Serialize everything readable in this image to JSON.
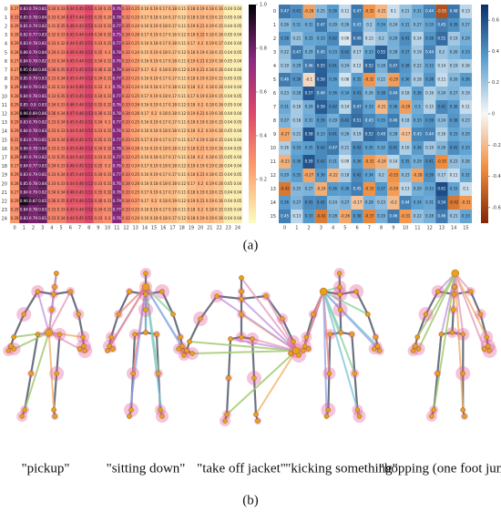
{
  "figure": {
    "panel_a": {
      "label": "(a)",
      "left_heatmap": {
        "ticks": [
          0,
          1,
          2,
          3,
          4,
          5,
          6,
          7,
          8,
          9,
          10,
          11,
          12,
          13,
          14,
          15,
          16,
          17,
          18,
          19,
          20,
          21,
          22,
          23,
          24
        ],
        "colorbar_ticks": [
          0.2,
          0.4,
          0.6,
          0.8,
          {
            "value": 1,
            "label": "1.0"
          }
        ],
        "zlim": [
          0,
          1
        ],
        "values": [
          [
            0.27,
            0.83,
            0.79,
            0.81,
            0.34,
            0.33,
            0.44,
            0.45,
            0.51,
            0.34,
            0.31,
            0.76,
            0.33,
            0.25,
            0.16,
            0.19,
            0.17,
            0.18,
            0.11,
            0.18,
            0.19,
            0.18,
            0.16,
            0.04,
            0.04
          ],
          [
            0.33,
            0.85,
            0.78,
            0.84,
            0.33,
            0.34,
            0.47,
            0.44,
            0.51,
            0.35,
            0.29,
            0.78,
            0.32,
            0.25,
            0.17,
            0.18,
            0.16,
            0.17,
            0.12,
            0.18,
            0.19,
            0.19,
            0.15,
            0.05,
            0.04
          ],
          [
            0.29,
            0.81,
            0.79,
            0.82,
            0.31,
            0.35,
            0.46,
            0.43,
            0.52,
            0.33,
            0.31,
            0.77,
            0.35,
            0.24,
            0.16,
            0.19,
            0.18,
            0.17,
            0.11,
            0.19,
            0.21,
            0.19,
            0.15,
            0.04,
            0.05
          ],
          [
            0.28,
            0.82,
            0.77,
            0.83,
            0.32,
            0.33,
            0.45,
            0.44,
            0.49,
            0.34,
            0.32,
            0.75,
            0.34,
            0.26,
            0.17,
            0.19,
            0.17,
            0.16,
            0.12,
            0.18,
            0.22,
            0.18,
            0.16,
            0.05,
            0.04
          ],
          [
            0.29,
            0.83,
            0.78,
            0.81,
            0.33,
            0.32,
            0.44,
            0.45,
            0.51,
            0.33,
            0.31,
            0.77,
            0.33,
            0.25,
            0.16,
            0.18,
            0.17,
            0.18,
            0.11,
            0.17,
            0.2,
            0.19,
            0.17,
            0.04,
            0.04
          ],
          [
            0.28,
            0.86,
            0.79,
            0.84,
            0.34,
            0.33,
            0.46,
            0.46,
            0.52,
            0.35,
            0.3,
            0.78,
            0.32,
            0.24,
            0.15,
            0.19,
            0.18,
            0.17,
            0.12,
            0.18,
            0.19,
            0.18,
            0.15,
            0.04,
            0.05
          ],
          [
            0.27,
            0.84,
            0.78,
            0.82,
            0.33,
            0.34,
            0.45,
            0.44,
            0.51,
            0.34,
            0.31,
            0.76,
            0.33,
            0.25,
            0.16,
            0.19,
            0.17,
            0.18,
            0.11,
            0.19,
            0.21,
            0.19,
            0.16,
            0.05,
            0.04
          ],
          [
            0.27,
            0.95,
            0.88,
            0.86,
            0.36,
            0.35,
            0.47,
            0.45,
            0.53,
            0.36,
            0.32,
            0.79,
            0.34,
            0.27,
            0.17,
            0.2,
            0.18,
            0.19,
            0.12,
            0.19,
            0.21,
            0.18,
            0.16,
            0.04,
            0.04
          ],
          [
            0.29,
            0.85,
            0.79,
            0.83,
            0.33,
            0.34,
            0.45,
            0.44,
            0.52,
            0.34,
            0.31,
            0.77,
            0.33,
            0.25,
            0.16,
            0.19,
            0.17,
            0.17,
            0.11,
            0.18,
            0.19,
            0.19,
            0.15,
            0.05,
            0.05
          ],
          [
            0.29,
            0.84,
            0.79,
            0.82,
            0.32,
            0.33,
            0.44,
            0.46,
            0.51,
            0.33,
            0.3,
            0.76,
            0.33,
            0.24,
            0.16,
            0.18,
            0.17,
            0.18,
            0.12,
            0.18,
            0.2,
            0.18,
            0.16,
            0.04,
            0.04
          ],
          [
            0.28,
            0.84,
            0.78,
            0.81,
            0.33,
            0.35,
            0.45,
            0.45,
            0.51,
            0.34,
            0.31,
            0.77,
            0.32,
            0.25,
            0.17,
            0.19,
            0.18,
            0.17,
            0.11,
            0.17,
            0.19,
            0.19,
            0.15,
            0.04,
            0.05
          ],
          [
            0.29,
            0.85,
            0.8,
            0.83,
            0.34,
            0.33,
            0.46,
            0.44,
            0.52,
            0.35,
            0.32,
            0.76,
            0.33,
            0.26,
            0.16,
            0.19,
            0.17,
            0.18,
            0.12,
            0.18,
            0.2,
            0.18,
            0.16,
            0.05,
            0.04
          ],
          [
            0.29,
            0.96,
            0.89,
            0.86,
            0.36,
            0.34,
            0.47,
            0.46,
            0.53,
            0.36,
            0.31,
            0.78,
            0.34,
            0.26,
            0.17,
            0.2,
            0.18,
            0.18,
            0.12,
            0.19,
            0.21,
            0.19,
            0.16,
            0.04,
            0.04
          ],
          [
            0.29,
            0.83,
            0.79,
            0.82,
            0.33,
            0.34,
            0.45,
            0.45,
            0.51,
            0.34,
            0.3,
            0.77,
            0.33,
            0.25,
            0.16,
            0.19,
            0.17,
            0.17,
            0.11,
            0.18,
            0.19,
            0.18,
            0.15,
            0.04,
            0.05
          ],
          [
            0.29,
            0.84,
            0.78,
            0.83,
            0.33,
            0.33,
            0.44,
            0.44,
            0.52,
            0.33,
            0.31,
            0.76,
            0.32,
            0.24,
            0.16,
            0.18,
            0.18,
            0.18,
            0.12,
            0.18,
            0.2,
            0.19,
            0.16,
            0.05,
            0.04
          ],
          [
            0.31,
            0.83,
            0.79,
            0.81,
            0.34,
            0.34,
            0.46,
            0.45,
            0.51,
            0.35,
            0.31,
            0.77,
            0.33,
            0.25,
            0.17,
            0.19,
            0.17,
            0.17,
            0.11,
            0.17,
            0.19,
            0.18,
            0.15,
            0.04,
            0.04
          ],
          [
            0.28,
            0.86,
            0.78,
            0.84,
            0.33,
            0.33,
            0.45,
            0.46,
            0.52,
            0.34,
            0.32,
            0.78,
            0.34,
            0.26,
            0.16,
            0.19,
            0.18,
            0.18,
            0.12,
            0.18,
            0.21,
            0.19,
            0.16,
            0.04,
            0.05
          ],
          [
            0.29,
            0.85,
            0.79,
            0.82,
            0.32,
            0.35,
            0.44,
            0.44,
            0.51,
            0.33,
            0.31,
            0.77,
            0.33,
            0.25,
            0.16,
            0.18,
            0.17,
            0.17,
            0.11,
            0.18,
            0.2,
            0.18,
            0.15,
            0.05,
            0.04
          ],
          [
            0.27,
            0.84,
            0.77,
            0.83,
            0.34,
            0.33,
            0.46,
            0.45,
            0.52,
            0.35,
            0.3,
            0.76,
            0.32,
            0.24,
            0.17,
            0.19,
            0.18,
            0.18,
            0.12,
            0.19,
            0.19,
            0.19,
            0.16,
            0.04,
            0.04
          ],
          [
            0.29,
            0.83,
            0.79,
            0.81,
            0.33,
            0.34,
            0.45,
            0.44,
            0.51,
            0.34,
            0.31,
            0.77,
            0.33,
            0.25,
            0.16,
            0.19,
            0.17,
            0.17,
            0.11,
            0.18,
            0.21,
            0.18,
            0.15,
            0.04,
            0.05
          ],
          [
            0.28,
            0.85,
            0.78,
            0.84,
            0.33,
            0.33,
            0.44,
            0.46,
            0.52,
            0.33,
            0.31,
            0.76,
            0.34,
            0.26,
            0.16,
            0.18,
            0.18,
            0.18,
            0.12,
            0.17,
            0.2,
            0.19,
            0.16,
            0.05,
            0.04
          ],
          [
            0.27,
            0.84,
            0.79,
            0.82,
            0.34,
            0.34,
            0.46,
            0.45,
            0.51,
            0.35,
            0.32,
            0.78,
            0.33,
            0.25,
            0.17,
            0.19,
            0.17,
            0.17,
            0.11,
            0.18,
            0.19,
            0.18,
            0.15,
            0.04,
            0.04
          ],
          [
            0.29,
            0.96,
            0.87,
            0.85,
            0.36,
            0.35,
            0.47,
            0.46,
            0.53,
            0.36,
            0.31,
            0.79,
            0.34,
            0.27,
            0.17,
            0.2,
            0.18,
            0.19,
            0.12,
            0.19,
            0.21,
            0.19,
            0.16,
            0.04,
            0.05
          ],
          [
            0.29,
            0.84,
            0.78,
            0.83,
            0.33,
            0.33,
            0.45,
            0.44,
            0.52,
            0.34,
            0.31,
            0.77,
            0.33,
            0.25,
            0.16,
            0.19,
            0.17,
            0.18,
            0.11,
            0.18,
            0.2,
            0.18,
            0.15,
            0.05,
            0.04
          ],
          [
            0.28,
            0.83,
            0.79,
            0.81,
            0.33,
            0.34,
            0.44,
            0.45,
            0.51,
            0.33,
            0.3,
            0.76,
            0.32,
            0.24,
            0.16,
            0.18,
            0.18,
            0.17,
            0.12,
            0.18,
            0.19,
            0.19,
            0.16,
            0.04,
            0.04
          ]
        ]
      },
      "right_heatmap": {
        "ticks": [
          0,
          1,
          2,
          3,
          4,
          5,
          6,
          7,
          8,
          9,
          10,
          11,
          12,
          13,
          14,
          15
        ],
        "colorbar_ticks": [
          -0.6,
          -0.4,
          -0.2,
          0,
          0.2,
          0.4,
          0.6
        ],
        "zlim": [
          -0.7,
          0.7
        ],
        "values": [
          [
            0.47,
            0.41,
            -0.28,
            0.25,
            0.36,
            0.11,
            0.47,
            -0.32,
            -0.21,
            0.1,
            0.21,
            0.31,
            0.44,
            -0.55,
            0.48,
            0.13
          ],
          [
            0.26,
            0.31,
            0.31,
            0.47,
            0.29,
            0.26,
            0.43,
            0.2,
            0.34,
            0.24,
            0.31,
            0.27,
            0.33,
            0.45,
            0.39,
            0.27
          ],
          [
            0.38,
            0.21,
            0.33,
            0.33,
            0.42,
            0.06,
            0.49,
            0.13,
            0.2,
            0.29,
            0.41,
            0.14,
            0.38,
            0.51,
            0.19,
            0.29
          ],
          [
            0.22,
            0.47,
            0.29,
            0.45,
            0.33,
            0.42,
            0.17,
            0.33,
            0.55,
            0.28,
            0.37,
            0.19,
            0.44,
            0.2,
            0.26,
            0.33
          ],
          [
            0.19,
            0.29,
            0.46,
            0.55,
            0.41,
            0.24,
            0.12,
            0.52,
            0.28,
            0.47,
            0.38,
            0.22,
            0.33,
            0.14,
            0.19,
            0.16
          ],
          [
            0.46,
            0.39,
            -0.1,
            0.56,
            0.36,
            0.08,
            0.35,
            -0.32,
            0.22,
            -0.29,
            0.36,
            0.18,
            0.38,
            0.11,
            0.26,
            0.36
          ],
          [
            0.23,
            0.28,
            0.57,
            0.46,
            0.36,
            0.34,
            0.41,
            0.26,
            0.38,
            0.44,
            0.18,
            0.36,
            0.16,
            0.24,
            0.27,
            0.19
          ],
          [
            0.31,
            0.18,
            0.29,
            0.56,
            0.42,
            0.14,
            0.47,
            0.33,
            -0.21,
            0.36,
            -0.29,
            0.3,
            0.15,
            0.42,
            0.36,
            0.11
          ],
          [
            0.27,
            0.18,
            0.31,
            0.39,
            0.29,
            0.42,
            0.51,
            0.43,
            0.35,
            0.46,
            0.18,
            0.33,
            0.39,
            0.24,
            0.38,
            0.23
          ],
          [
            -0.27,
            0.21,
            0.58,
            0.33,
            0.41,
            0.26,
            0.19,
            0.52,
            0.48,
            0.28,
            -0.17,
            0.43,
            0.44,
            0.16,
            0.33,
            0.29
          ],
          [
            0.16,
            0.33,
            0.35,
            0.42,
            0.47,
            0.21,
            0.42,
            0.35,
            0.32,
            0.41,
            0.16,
            0.36,
            0.19,
            0.26,
            0.41,
            0.33
          ],
          [
            -0.23,
            0.36,
            0.59,
            0.42,
            0.31,
            0.09,
            0.36,
            -0.31,
            -0.24,
            0.14,
            0.35,
            0.29,
            0.41,
            -0.35,
            0.23,
            0.26
          ],
          [
            0.29,
            0.35,
            -0.27,
            0.36,
            -0.22,
            0.18,
            0.42,
            0.34,
            0.2,
            -0.33,
            0.23,
            -0.28,
            0.39,
            0.17,
            0.11,
            0.32
          ],
          [
            -0.42,
            0.25,
            0.27,
            -0.24,
            0.36,
            0.36,
            0.45,
            -0.33,
            0.37,
            -0.29,
            0.13,
            0.29,
            0.33,
            0.61,
            0.33,
            0.1
          ],
          [
            0.36,
            0.27,
            0.41,
            0.42,
            0.24,
            0.27,
            -0.17,
            0.28,
            0.23,
            -0.2,
            0.44,
            0.34,
            0.31,
            0.54,
            -0.42,
            -0.31
          ],
          [
            0.45,
            0.13,
            0.37,
            -0.41,
            0.28,
            -0.26,
            0.38,
            -0.37,
            0.29,
            0.46,
            -0.31,
            0.22,
            0.28,
            0.46,
            0.21,
            0.33
          ]
        ]
      }
    },
    "panel_b": {
      "label": "(b)",
      "actions": [
        "\"pickup\"",
        "\"sitting down\"",
        "\"take off jacket\"",
        "\"kicking something\"",
        "\"hopping (one foot jumping)\""
      ]
    }
  }
}
